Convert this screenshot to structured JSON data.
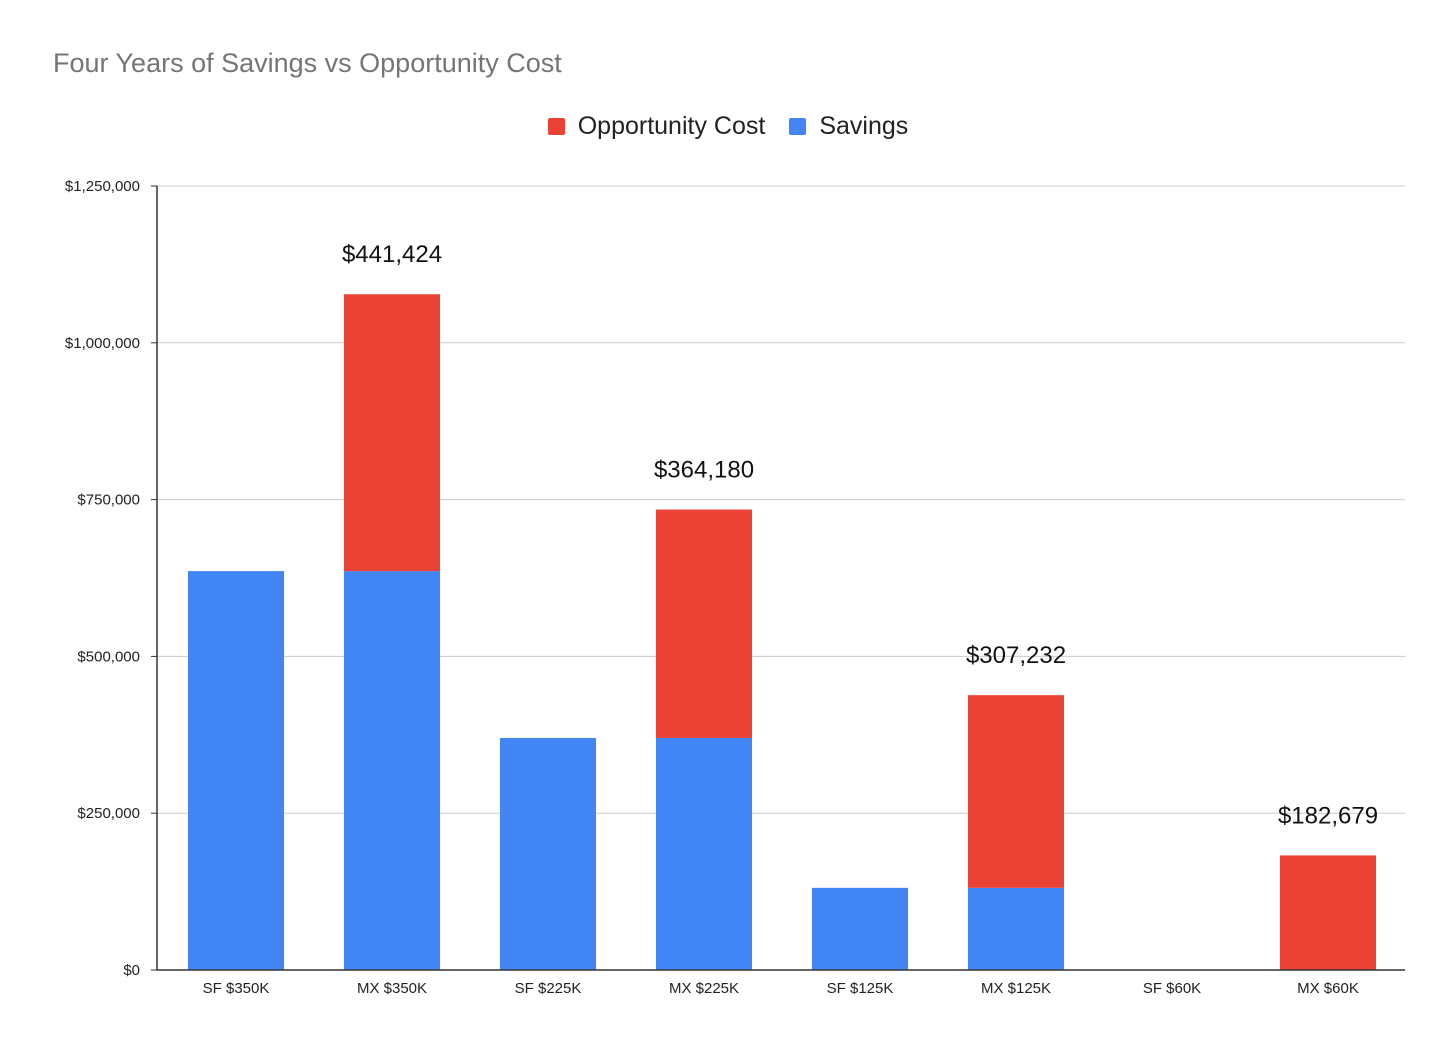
{
  "chart_data": {
    "type": "bar",
    "stacked": true,
    "title": "Four Years of Savings vs Opportunity Cost",
    "xlabel": "",
    "ylabel": "",
    "ylim": [
      0,
      1250000
    ],
    "yticks": [
      "$0",
      "$250,000",
      "$500,000",
      "$750,000",
      "$1,000,000",
      "$1,250,000"
    ],
    "ytick_values": [
      0,
      250000,
      500000,
      750000,
      1000000,
      1250000
    ],
    "grid": true,
    "legend_position": "top",
    "categories": [
      "SF $350K",
      "MX $350K",
      "SF $225K",
      "MX $225K",
      "SF $125K",
      "MX $125K",
      "SF $60K",
      "MX $60K"
    ],
    "series": [
      {
        "name": "Savings",
        "color": "#4285F4",
        "values": [
          636000,
          636000,
          370000,
          370000,
          131000,
          131000,
          0,
          0
        ]
      },
      {
        "name": "Opportunity Cost",
        "color": "#EA4335",
        "values": [
          0,
          441424,
          0,
          364180,
          0,
          307232,
          0,
          182679
        ]
      }
    ],
    "legend_order": [
      "Opportunity Cost",
      "Savings"
    ],
    "data_labels": [
      "",
      "$441,424",
      "",
      "$364,180",
      "",
      "$307,232",
      "",
      "$182,679"
    ]
  }
}
